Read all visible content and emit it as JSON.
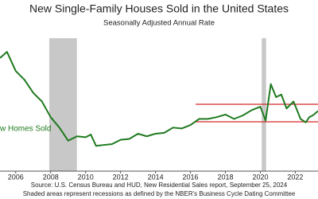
{
  "chart_data": {
    "type": "line",
    "title": "New Single-Family Houses Sold in the United States",
    "subtitle": "Seasonally Adjusted Annual Rate",
    "source": "Source:  U.S. Census Bureau and HUD, New Residential Sales report, September 25, 2024",
    "footnote": "Shaded areas represent recessions as defined by the NBER's Business Cycle Dating Committee",
    "series_label": "w Homes Sold",
    "x": [
      2005.1,
      2005.5,
      2006,
      2006.5,
      2007,
      2007.5,
      2008,
      2008.5,
      2009,
      2009.5,
      2010,
      2010.3,
      2010.6,
      2011,
      2011.5,
      2012,
      2012.5,
      2013,
      2013.5,
      2014,
      2014.5,
      2015,
      2015.5,
      2016,
      2016.5,
      2017,
      2017.5,
      2018,
      2018.5,
      2019,
      2019.5,
      2020,
      2020.3,
      2020.6,
      2020.9,
      2021.2,
      2021.5,
      2021.9,
      2022.3,
      2022.6,
      2022.8,
      2023,
      2023.3
    ],
    "series": [
      {
        "name": "New Homes Sold",
        "color": "#1f7a1f",
        "values": [
          1300,
          1370,
          1150,
          1050,
          900,
          800,
          620,
          500,
          350,
          400,
          390,
          420,
          290,
          300,
          310,
          360,
          370,
          430,
          400,
          430,
          440,
          500,
          490,
          530,
          600,
          600,
          620,
          650,
          600,
          640,
          700,
          740,
          580,
          1000,
          850,
          880,
          720,
          800,
          600,
          560,
          620,
          640,
          690
        ]
      }
    ],
    "recessions": [
      [
        2007.92,
        2009.5
      ],
      [
        2020.08,
        2020.33
      ]
    ],
    "recession_color": "#c8c8c8",
    "reference_lines": [
      {
        "value": 768,
        "from": 2016.3
      },
      {
        "value": 567,
        "from": 2016.3
      }
    ],
    "reference_color": "#d62728",
    "xlim": [
      2005.1,
      2023.3
    ],
    "xticks": [
      2006,
      2008,
      2010,
      2012,
      2014,
      2016,
      2018,
      2020,
      2022
    ],
    "ylim": [
      0,
      1600
    ]
  }
}
